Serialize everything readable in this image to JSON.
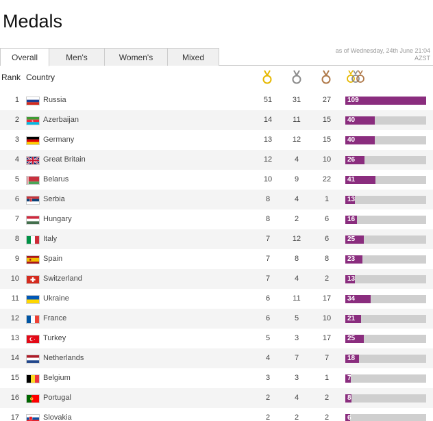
{
  "page": {
    "title": "Medals"
  },
  "tabs": [
    {
      "label": "Overall",
      "active": true
    },
    {
      "label": "Men's",
      "active": false
    },
    {
      "label": "Women's",
      "active": false
    },
    {
      "label": "Mixed",
      "active": false
    }
  ],
  "asof": {
    "line1": "as of Wednesday, 24th June 21:04",
    "line2": "AZST"
  },
  "header": {
    "rank": "Rank",
    "country": "Country"
  },
  "colors": {
    "accent": "#8a2d7e",
    "bar_bg": "#cfcfcf",
    "gold": "#e6b800",
    "silver": "#8c8c8c",
    "bronze": "#b07a4a"
  },
  "bar_max": 109,
  "rows": [
    {
      "rank": "1",
      "country": "Russia",
      "flag": "russia",
      "gold": "51",
      "silver": "31",
      "bronze": "27",
      "total": "109"
    },
    {
      "rank": "2",
      "country": "Azerbaijan",
      "flag": "azerbaijan",
      "gold": "14",
      "silver": "11",
      "bronze": "15",
      "total": "40"
    },
    {
      "rank": "3",
      "country": "Germany",
      "flag": "germany",
      "gold": "13",
      "silver": "12",
      "bronze": "15",
      "total": "40"
    },
    {
      "rank": "4",
      "country": "Great Britain",
      "flag": "great-britain",
      "gold": "12",
      "silver": "4",
      "bronze": "10",
      "total": "26"
    },
    {
      "rank": "5",
      "country": "Belarus",
      "flag": "belarus",
      "gold": "10",
      "silver": "9",
      "bronze": "22",
      "total": "41"
    },
    {
      "rank": "6",
      "country": "Serbia",
      "flag": "serbia",
      "gold": "8",
      "silver": "4",
      "bronze": "1",
      "total": "13"
    },
    {
      "rank": "7",
      "country": "Hungary",
      "flag": "hungary",
      "gold": "8",
      "silver": "2",
      "bronze": "6",
      "total": "16"
    },
    {
      "rank": "8",
      "country": "Italy",
      "flag": "italy",
      "gold": "7",
      "silver": "12",
      "bronze": "6",
      "total": "25"
    },
    {
      "rank": "9",
      "country": "Spain",
      "flag": "spain",
      "gold": "7",
      "silver": "8",
      "bronze": "8",
      "total": "23"
    },
    {
      "rank": "10",
      "country": "Switzerland",
      "flag": "switzerland",
      "gold": "7",
      "silver": "4",
      "bronze": "2",
      "total": "13"
    },
    {
      "rank": "11",
      "country": "Ukraine",
      "flag": "ukraine",
      "gold": "6",
      "silver": "11",
      "bronze": "17",
      "total": "34"
    },
    {
      "rank": "12",
      "country": "France",
      "flag": "france",
      "gold": "6",
      "silver": "5",
      "bronze": "10",
      "total": "21"
    },
    {
      "rank": "13",
      "country": "Turkey",
      "flag": "turkey",
      "gold": "5",
      "silver": "3",
      "bronze": "17",
      "total": "25"
    },
    {
      "rank": "14",
      "country": "Netherlands",
      "flag": "netherlands",
      "gold": "4",
      "silver": "7",
      "bronze": "7",
      "total": "18"
    },
    {
      "rank": "15",
      "country": "Belgium",
      "flag": "belgium",
      "gold": "3",
      "silver": "3",
      "bronze": "1",
      "total": "7"
    },
    {
      "rank": "16",
      "country": "Portugal",
      "flag": "portugal",
      "gold": "2",
      "silver": "4",
      "bronze": "2",
      "total": "8"
    },
    {
      "rank": "17",
      "country": "Slovakia",
      "flag": "slovakia",
      "gold": "2",
      "silver": "2",
      "bronze": "2",
      "total": "6"
    }
  ]
}
